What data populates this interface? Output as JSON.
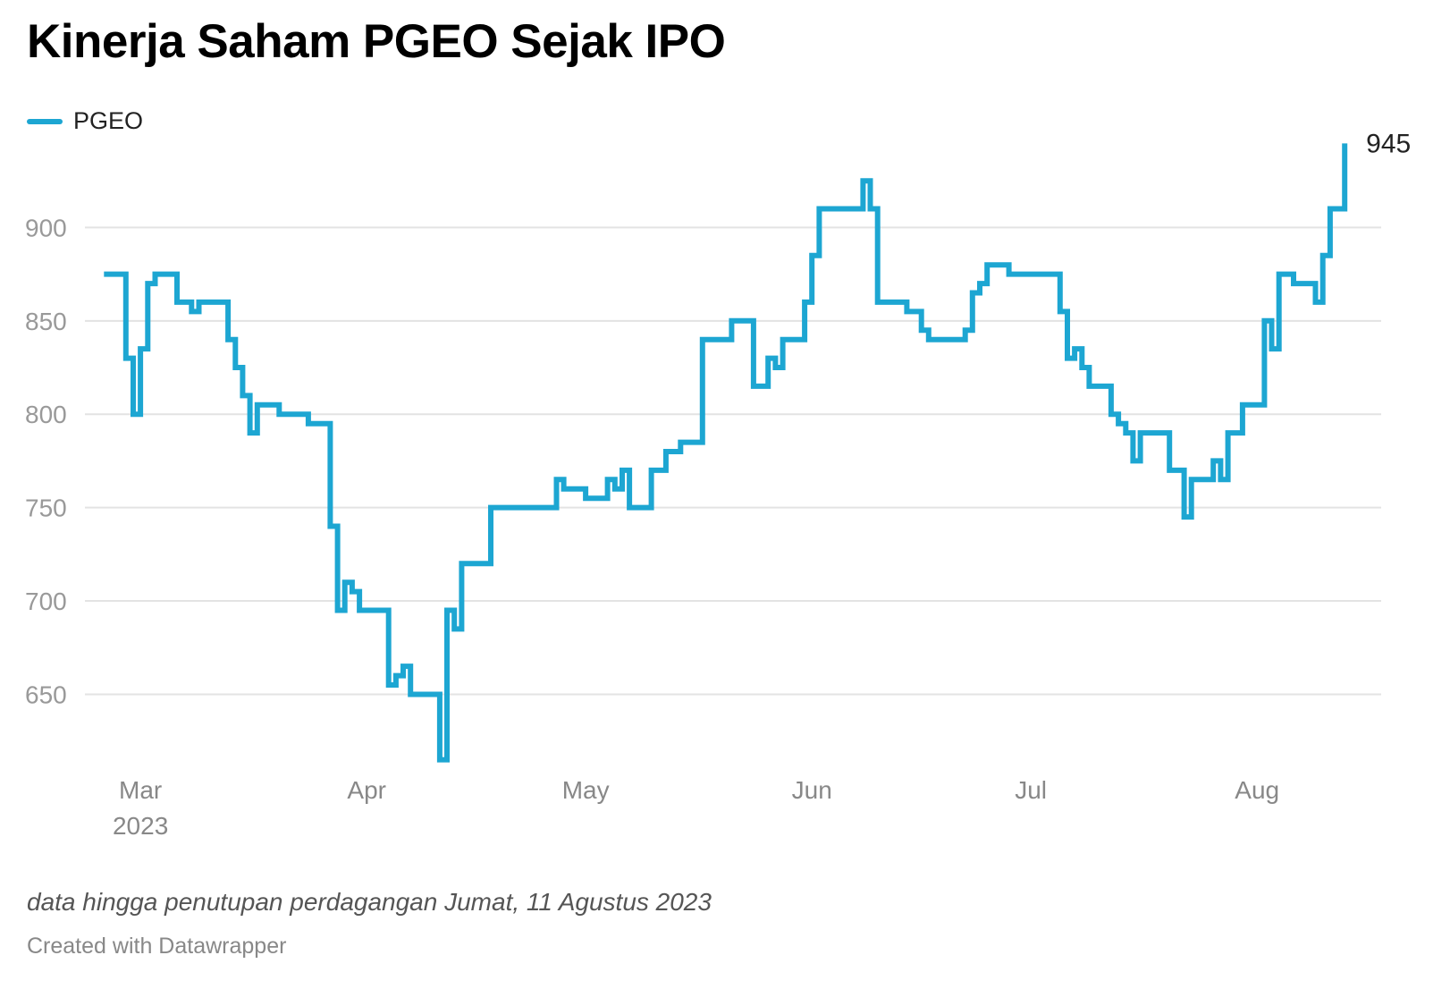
{
  "chart_data": {
    "type": "line",
    "title": "Kinerja Saham PGEO Sejak IPO",
    "notes": "data hingga penutupan perdagangan Jumat, 11 Agustus 2023",
    "credit": "Created with Datawrapper",
    "ylim": [
      610,
      950
    ],
    "yticks": [
      650,
      700,
      750,
      800,
      850,
      900
    ],
    "grid": true,
    "legend_position": "top-left",
    "line_style": "step",
    "color": "#1da6d2",
    "xticks": [
      {
        "label": "Mar",
        "sublabel": "2023",
        "date": "2023-03-01"
      },
      {
        "label": "Apr",
        "sublabel": "",
        "date": "2023-04-01"
      },
      {
        "label": "May",
        "sublabel": "",
        "date": "2023-05-01"
      },
      {
        "label": "Jun",
        "sublabel": "",
        "date": "2023-06-01"
      },
      {
        "label": "Jul",
        "sublabel": "",
        "date": "2023-07-01"
      },
      {
        "label": "Aug",
        "sublabel": "",
        "date": "2023-08-01"
      }
    ],
    "end_label": "945",
    "series": [
      {
        "name": "PGEO",
        "points": [
          [
            "2023-02-24",
            875
          ],
          [
            "2023-02-27",
            830
          ],
          [
            "2023-02-28",
            800
          ],
          [
            "2023-03-01",
            835
          ],
          [
            "2023-03-02",
            870
          ],
          [
            "2023-03-03",
            875
          ],
          [
            "2023-03-06",
            860
          ],
          [
            "2023-03-08",
            855
          ],
          [
            "2023-03-09",
            860
          ],
          [
            "2023-03-13",
            840
          ],
          [
            "2023-03-14",
            825
          ],
          [
            "2023-03-15",
            810
          ],
          [
            "2023-03-16",
            790
          ],
          [
            "2023-03-17",
            805
          ],
          [
            "2023-03-20",
            800
          ],
          [
            "2023-03-24",
            795
          ],
          [
            "2023-03-27",
            740
          ],
          [
            "2023-03-28",
            695
          ],
          [
            "2023-03-29",
            710
          ],
          [
            "2023-03-30",
            705
          ],
          [
            "2023-03-31",
            695
          ],
          [
            "2023-04-04",
            655
          ],
          [
            "2023-04-05",
            660
          ],
          [
            "2023-04-06",
            665
          ],
          [
            "2023-04-07",
            650
          ],
          [
            "2023-04-11",
            615
          ],
          [
            "2023-04-12",
            695
          ],
          [
            "2023-04-13",
            685
          ],
          [
            "2023-04-14",
            720
          ],
          [
            "2023-04-18",
            750
          ],
          [
            "2023-04-27",
            765
          ],
          [
            "2023-04-28",
            760
          ],
          [
            "2023-05-01",
            755
          ],
          [
            "2023-05-04",
            765
          ],
          [
            "2023-05-05",
            760
          ],
          [
            "2023-05-06",
            770
          ],
          [
            "2023-05-07",
            750
          ],
          [
            "2023-05-10",
            770
          ],
          [
            "2023-05-12",
            780
          ],
          [
            "2023-05-14",
            785
          ],
          [
            "2023-05-17",
            840
          ],
          [
            "2023-05-21",
            850
          ],
          [
            "2023-05-24",
            815
          ],
          [
            "2023-05-26",
            830
          ],
          [
            "2023-05-27",
            825
          ],
          [
            "2023-05-28",
            840
          ],
          [
            "2023-05-31",
            860
          ],
          [
            "2023-06-01",
            885
          ],
          [
            "2023-06-02",
            910
          ],
          [
            "2023-06-08",
            925
          ],
          [
            "2023-06-09",
            910
          ],
          [
            "2023-06-10",
            860
          ],
          [
            "2023-06-14",
            855
          ],
          [
            "2023-06-16",
            845
          ],
          [
            "2023-06-17",
            840
          ],
          [
            "2023-06-22",
            845
          ],
          [
            "2023-06-23",
            865
          ],
          [
            "2023-06-24",
            870
          ],
          [
            "2023-06-25",
            880
          ],
          [
            "2023-06-28",
            875
          ],
          [
            "2023-07-05",
            855
          ],
          [
            "2023-07-06",
            830
          ],
          [
            "2023-07-07",
            835
          ],
          [
            "2023-07-08",
            825
          ],
          [
            "2023-07-09",
            815
          ],
          [
            "2023-07-12",
            800
          ],
          [
            "2023-07-13",
            795
          ],
          [
            "2023-07-14",
            790
          ],
          [
            "2023-07-15",
            775
          ],
          [
            "2023-07-16",
            790
          ],
          [
            "2023-07-20",
            770
          ],
          [
            "2023-07-22",
            745
          ],
          [
            "2023-07-23",
            765
          ],
          [
            "2023-07-26",
            775
          ],
          [
            "2023-07-27",
            765
          ],
          [
            "2023-07-28",
            790
          ],
          [
            "2023-07-30",
            805
          ],
          [
            "2023-08-02",
            850
          ],
          [
            "2023-08-03",
            835
          ],
          [
            "2023-08-04",
            875
          ],
          [
            "2023-08-06",
            870
          ],
          [
            "2023-08-09",
            860
          ],
          [
            "2023-08-10",
            885
          ],
          [
            "2023-08-11",
            910
          ],
          [
            "2023-08-13",
            945
          ]
        ]
      }
    ]
  }
}
